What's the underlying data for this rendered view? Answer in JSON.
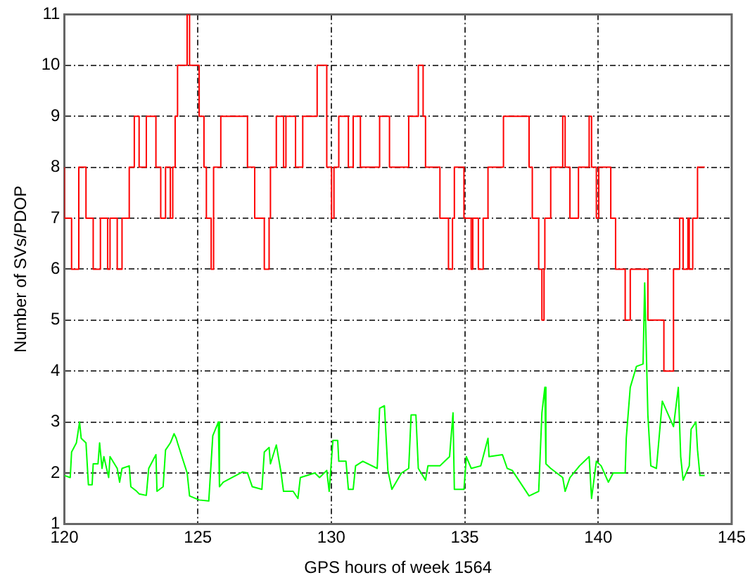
{
  "chart_data": {
    "type": "line",
    "xlabel": "GPS hours of week 1564",
    "ylabel": "Number of SVs/PDOP",
    "xlim": [
      120,
      145
    ],
    "xticks": [
      120,
      125,
      130,
      135,
      140,
      145
    ],
    "ylim": [
      1,
      11
    ],
    "yticks": [
      1,
      2,
      3,
      4,
      5,
      6,
      7,
      8,
      9,
      10,
      11
    ],
    "grid": true,
    "legend": false,
    "marker": "none",
    "line_style": "solid",
    "series": [
      {
        "type": "step",
        "color": "#ff0000",
        "x": [
          120.0,
          120.27,
          120.54,
          120.81,
          121.08,
          121.35,
          121.62,
          121.71,
          121.98,
          122.16,
          122.43,
          122.62,
          122.8,
          123.07,
          123.43,
          123.61,
          123.79,
          123.97,
          124.06,
          124.15,
          124.24,
          124.6,
          124.69,
          125.05,
          125.23,
          125.32,
          125.5,
          125.59,
          125.86,
          126.86,
          127.13,
          127.49,
          127.67,
          127.72,
          127.94,
          128.21,
          128.3,
          128.66,
          128.93,
          129.47,
          129.83,
          130.01,
          130.1,
          130.28,
          130.64,
          130.82,
          131.09,
          131.81,
          132.18,
          132.9,
          133.26,
          133.44,
          133.53,
          134.07,
          134.39,
          134.54,
          134.61,
          134.97,
          135.24,
          135.3,
          135.51,
          135.69,
          135.87,
          136.45,
          137.41,
          137.53,
          137.77,
          137.89,
          137.97,
          138.0,
          138.22,
          138.67,
          138.76,
          138.94,
          139.26,
          139.66,
          139.75,
          139.93,
          140.02,
          140.47,
          140.65,
          141.01,
          141.2,
          141.86,
          142.46,
          142.82,
          143.05,
          143.18,
          143.36,
          143.41,
          143.54,
          143.72,
          143.81,
          143.99
        ],
        "values": [
          8,
          7,
          6,
          8,
          7,
          6,
          7,
          6,
          7,
          6,
          7,
          8,
          9,
          8,
          9,
          8,
          7,
          8,
          7,
          8,
          9,
          10,
          11,
          10,
          9,
          8,
          7,
          6,
          8,
          9,
          8,
          7,
          6,
          7,
          8,
          9,
          8,
          9,
          8,
          9,
          10,
          8,
          7,
          8,
          9,
          8,
          9,
          8,
          9,
          8,
          9,
          10,
          9,
          8,
          7,
          6,
          7,
          8,
          7,
          6,
          7,
          6,
          7,
          8,
          9,
          8,
          7,
          6,
          5,
          6,
          7,
          8,
          9,
          8,
          7,
          8,
          9,
          8,
          7,
          8,
          7,
          6,
          5,
          6,
          5,
          4,
          6,
          7,
          6,
          7,
          6,
          7,
          8,
          8
        ]
      },
      {
        "type": "line",
        "color": "#00ff00",
        "x": [
          120.0,
          120.22,
          120.27,
          120.45,
          120.57,
          120.63,
          120.81,
          120.9,
          121.04,
          121.08,
          121.26,
          121.32,
          121.41,
          121.48,
          121.66,
          121.71,
          121.98,
          122.07,
          122.16,
          122.43,
          122.49,
          122.71,
          122.8,
          123.07,
          123.16,
          123.43,
          123.47,
          123.7,
          123.79,
          123.97,
          124.11,
          124.19,
          124.24,
          124.6,
          124.69,
          125.05,
          125.41,
          125.56,
          125.77,
          125.81,
          125.95,
          126.67,
          126.86,
          127.04,
          127.4,
          127.49,
          127.67,
          127.72,
          127.94,
          128.12,
          128.21,
          128.57,
          128.75,
          128.84,
          129.38,
          129.56,
          129.83,
          129.92,
          130.06,
          130.24,
          130.28,
          130.55,
          130.64,
          130.82,
          130.91,
          131.18,
          131.72,
          131.81,
          131.99,
          132.12,
          132.27,
          132.63,
          132.9,
          132.99,
          133.17,
          133.26,
          133.53,
          133.62,
          134.07,
          134.25,
          134.43,
          134.56,
          134.61,
          134.97,
          135.06,
          135.24,
          135.6,
          135.87,
          135.91,
          136.41,
          136.59,
          136.78,
          137.41,
          137.77,
          137.89,
          138.0,
          138.04,
          138.22,
          138.67,
          138.76,
          138.94,
          139.3,
          139.66,
          139.75,
          139.93,
          140.11,
          140.38,
          140.56,
          141.01,
          141.05,
          141.2,
          141.43,
          141.68,
          141.74,
          141.86,
          141.97,
          142.18,
          142.4,
          142.82,
          143.0,
          143.09,
          143.18,
          143.41,
          143.48,
          143.66,
          143.72,
          143.81,
          143.99
        ],
        "values": [
          1.95,
          1.91,
          2.41,
          2.59,
          3.0,
          2.68,
          2.59,
          1.77,
          1.77,
          2.18,
          2.18,
          2.59,
          2.09,
          2.32,
          1.91,
          2.32,
          2.09,
          1.82,
          2.09,
          2.14,
          1.73,
          1.64,
          1.59,
          1.56,
          2.09,
          2.36,
          1.64,
          1.73,
          2.45,
          2.59,
          2.77,
          2.68,
          2.59,
          2.0,
          1.55,
          1.47,
          1.45,
          2.73,
          3.0,
          1.73,
          1.82,
          2.02,
          2.0,
          1.73,
          1.68,
          2.41,
          2.5,
          2.18,
          2.55,
          2.0,
          1.64,
          1.64,
          1.5,
          1.91,
          2.0,
          1.91,
          2.05,
          1.64,
          2.64,
          2.64,
          2.23,
          2.23,
          1.68,
          1.68,
          2.14,
          2.23,
          2.09,
          3.27,
          3.32,
          2.05,
          1.68,
          2.0,
          2.09,
          3.14,
          3.14,
          2.09,
          1.86,
          2.14,
          2.14,
          2.23,
          2.32,
          3.18,
          1.68,
          1.68,
          2.32,
          2.09,
          2.14,
          2.68,
          2.32,
          2.36,
          2.09,
          2.05,
          1.55,
          1.64,
          3.18,
          3.68,
          2.18,
          2.09,
          1.91,
          1.64,
          1.91,
          2.14,
          2.32,
          1.5,
          2.23,
          2.14,
          1.82,
          2.0,
          2.0,
          2.68,
          3.68,
          4.09,
          4.14,
          5.73,
          3.14,
          2.14,
          2.09,
          3.41,
          2.91,
          3.68,
          2.32,
          1.86,
          2.14,
          2.86,
          3.0,
          2.45,
          1.95,
          1.95
        ]
      }
    ]
  }
}
